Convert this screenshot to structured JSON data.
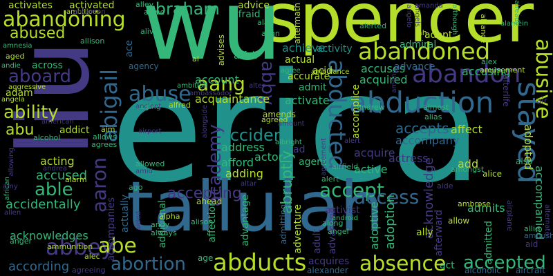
{
  "palette": {
    "background": "#000000",
    "lime": "#b5de2b",
    "green": "#35b779",
    "teal": "#21918c",
    "blue": "#31688e",
    "indigo": "#443a83",
    "purple": "#440154"
  },
  "words": [
    {
      "text": "erica",
      "color": "#21918c"
    },
    {
      "text": "spencer",
      "color": "#b5de2b"
    },
    {
      "text": "wu",
      "color": "#35b779"
    },
    {
      "text": "liu",
      "color": "#443a83"
    },
    {
      "text": "tallulah",
      "color": "#31688e"
    },
    {
      "text": "abduction",
      "color": "#31688e"
    },
    {
      "text": "abandoned",
      "color": "#b5de2b"
    },
    {
      "text": "abandoning",
      "color": "#b5de2b"
    },
    {
      "text": "abandon",
      "color": "#443a83"
    },
    {
      "text": "abducted",
      "color": "#31688e"
    },
    {
      "text": "stayed",
      "color": "#31688e"
    },
    {
      "text": "abusive",
      "color": "#b5de2b"
    },
    {
      "text": "abraham",
      "color": "#35b779"
    },
    {
      "text": "abused",
      "color": "#b5de2b"
    },
    {
      "text": "aboard",
      "color": "#443a83"
    },
    {
      "text": "ability",
      "color": "#b5de2b"
    },
    {
      "text": "abigail",
      "color": "#31688e"
    },
    {
      "text": "aang",
      "color": "#b5de2b"
    },
    {
      "text": "abby",
      "color": "#443a83"
    },
    {
      "text": "abuse",
      "color": "#31688e"
    },
    {
      "text": "abu",
      "color": "#b5de2b"
    },
    {
      "text": "able",
      "color": "#35b779"
    },
    {
      "text": "aaron",
      "color": "#443a83"
    },
    {
      "text": "academy",
      "color": "#443a83"
    },
    {
      "text": "abruptly",
      "color": "#35b779"
    },
    {
      "text": "accident",
      "color": "#21918c"
    },
    {
      "text": "accept",
      "color": "#35b779"
    },
    {
      "text": "access",
      "color": "#31688e"
    },
    {
      "text": "accepts",
      "color": "#31688e"
    },
    {
      "text": "abbey",
      "color": "#443a83"
    },
    {
      "text": "abe",
      "color": "#b5de2b"
    },
    {
      "text": "abortion",
      "color": "#31688e"
    },
    {
      "text": "abducts",
      "color": "#b5de2b"
    },
    {
      "text": "absence",
      "color": "#b5de2b"
    },
    {
      "text": "accepted",
      "color": "#35b779"
    },
    {
      "text": "accepting",
      "color": "#443a83"
    },
    {
      "text": "accused",
      "color": "#35b779"
    },
    {
      "text": "accidentally",
      "color": "#35b779"
    },
    {
      "text": "acknowledges",
      "color": "#35b779"
    },
    {
      "text": "according",
      "color": "#31688e"
    },
    {
      "text": "accusing",
      "color": "#35b779"
    },
    {
      "text": "accuses",
      "color": "#35b779"
    },
    {
      "text": "achieve",
      "color": "#21918c"
    },
    {
      "text": "account",
      "color": "#35b779"
    },
    {
      "text": "acquaintance",
      "color": "#b5de2b"
    },
    {
      "text": "activate",
      "color": "#35b779"
    },
    {
      "text": "acquired",
      "color": "#35b779"
    },
    {
      "text": "accompany",
      "color": "#31688e"
    },
    {
      "text": "accomplice",
      "color": "#b5de2b"
    },
    {
      "text": "address",
      "color": "#35b779"
    },
    {
      "text": "acquire",
      "color": "#443a83"
    },
    {
      "text": "afford",
      "color": "#35b779"
    },
    {
      "text": "actor",
      "color": "#35b779"
    },
    {
      "text": "active",
      "color": "#35b779"
    },
    {
      "text": "actress",
      "color": "#443a83"
    },
    {
      "text": "affect",
      "color": "#b5de2b"
    },
    {
      "text": "acting",
      "color": "#b5de2b"
    },
    {
      "text": "add",
      "color": "#b5de2b"
    },
    {
      "text": "adding",
      "color": "#b5de2b"
    },
    {
      "text": "admits",
      "color": "#35b779"
    },
    {
      "text": "adoption",
      "color": "#35b779"
    },
    {
      "text": "adoptive",
      "color": "#35b779"
    },
    {
      "text": "accompanied",
      "color": "#35b779"
    },
    {
      "text": "adopted",
      "color": "#b5de2b"
    },
    {
      "text": "acknowledge",
      "color": "#443a83"
    },
    {
      "text": "act",
      "color": "#35b779"
    },
    {
      "text": "acquires",
      "color": "#443a83"
    },
    {
      "text": "activist",
      "color": "#443a83"
    },
    {
      "text": "advantage",
      "color": "#35b779"
    },
    {
      "text": "accompanies",
      "color": "#443a83"
    },
    {
      "text": "addict",
      "color": "#b5de2b"
    },
    {
      "text": "activates",
      "color": "#b5de2b"
    },
    {
      "text": "activated",
      "color": "#b5de2b"
    },
    {
      "text": "accurate",
      "color": "#b5de2b"
    },
    {
      "text": "across",
      "color": "#35b779"
    },
    {
      "text": "actual",
      "color": "#b5de2b"
    },
    {
      "text": "acid",
      "color": "#b5de2b"
    },
    {
      "text": "admiral",
      "color": "#35b779"
    },
    {
      "text": "advance",
      "color": "#31688e"
    },
    {
      "text": "activity",
      "color": "#21918c"
    },
    {
      "text": "adopt",
      "color": "#b5de2b"
    },
    {
      "text": "advice",
      "color": "#b5de2b"
    },
    {
      "text": "afraid",
      "color": "#35b779"
    },
    {
      "text": "aftermath",
      "color": "#b5de2b"
    },
    {
      "text": "admit",
      "color": "#35b779"
    },
    {
      "text": "adult",
      "color": "#443a83"
    },
    {
      "text": "admitted",
      "color": "#35b779"
    },
    {
      "text": "advanced",
      "color": "#443a83"
    },
    {
      "text": "adventure",
      "color": "#b5de2b"
    },
    {
      "text": "actually",
      "color": "#31688e"
    },
    {
      "text": "additional",
      "color": "#35b779"
    },
    {
      "text": "afterward",
      "color": "#443a83"
    },
    {
      "text": "agency",
      "color": "#31688e"
    },
    {
      "text": "adam",
      "color": "#b5de2b"
    },
    {
      "text": "ace",
      "color": "#31688e"
    },
    {
      "text": "advises",
      "color": "#b5de2b"
    },
    {
      "text": "affair",
      "color": "#35b779"
    },
    {
      "text": "ad",
      "color": "#443a83"
    },
    {
      "text": "agent",
      "color": "#35b779"
    },
    {
      "text": "affection",
      "color": "#35b779"
    },
    {
      "text": "admitting",
      "color": "#31688e"
    },
    {
      "text": "afterlife",
      "color": "#443a83"
    },
    {
      "text": "ahead",
      "color": "#b5de2b"
    },
    {
      "text": "ally",
      "color": "#b5de2b"
    },
    {
      "text": "age",
      "color": "#35b779"
    },
    {
      "text": "alexander",
      "color": "#31688e"
    },
    {
      "text": "alcoholic",
      "color": "#31688e"
    },
    {
      "text": "aircraft",
      "color": "#31688e"
    },
    {
      "text": "ambush",
      "color": "#31688e"
    },
    {
      "text": "allow",
      "color": "#b5de2b"
    },
    {
      "text": "alice",
      "color": "#b5de2b"
    },
    {
      "text": "also",
      "color": "#35b779"
    },
    {
      "text": "aid",
      "color": "#443a83"
    },
    {
      "text": "aim",
      "color": "#b5de2b"
    },
    {
      "text": "air",
      "color": "#443a83"
    },
    {
      "text": "amends",
      "color": "#b5de2b"
    },
    {
      "text": "ah",
      "color": "#b5de2b"
    },
    {
      "text": "al",
      "color": "#b5de2b"
    },
    {
      "text": "agreed",
      "color": "#b5de2b"
    },
    {
      "text": "aging",
      "color": "#35b779"
    },
    {
      "text": "alfred",
      "color": "#b5de2b"
    },
    {
      "text": "aggressive",
      "color": "#b5de2b"
    },
    {
      "text": "aged",
      "color": "#b5de2b"
    },
    {
      "text": "alone",
      "color": "#35b779"
    },
    {
      "text": "alley",
      "color": "#35b779"
    },
    {
      "text": "ambitious",
      "color": "#b5de2b"
    },
    {
      "text": "anderson",
      "color": "#443a83"
    },
    {
      "text": "alan",
      "color": "#35b779"
    },
    {
      "text": "alarm",
      "color": "#b5de2b"
    },
    {
      "text": "allowed",
      "color": "#35b779"
    },
    {
      "text": "allows",
      "color": "#35b779"
    },
    {
      "text": "agrees",
      "color": "#35b779"
    },
    {
      "text": "alcohol",
      "color": "#35b779"
    },
    {
      "text": "ago",
      "color": "#35b779"
    },
    {
      "text": "alert",
      "color": "#35b779"
    },
    {
      "text": "alerted",
      "color": "#35b779"
    },
    {
      "text": "align",
      "color": "#35b779"
    },
    {
      "text": "alive",
      "color": "#35b779"
    },
    {
      "text": "allison",
      "color": "#35b779"
    },
    {
      "text": "along",
      "color": "#35b779"
    },
    {
      "text": "alpha",
      "color": "#b5de2b"
    },
    {
      "text": "alison",
      "color": "#35b779"
    },
    {
      "text": "andy",
      "color": "#35b779"
    },
    {
      "text": "always",
      "color": "#35b779"
    },
    {
      "text": "angel",
      "color": "#35b779"
    },
    {
      "text": "allie",
      "color": "#35b779"
    },
    {
      "text": "alliance",
      "color": "#b5de2b"
    },
    {
      "text": "alex",
      "color": "#35b779"
    },
    {
      "text": "amusement",
      "color": "#b5de2b"
    },
    {
      "text": "almost",
      "color": "#35b779"
    },
    {
      "text": "alias",
      "color": "#35b779"
    },
    {
      "text": "andrew",
      "color": "#35b779"
    },
    {
      "text": "airfield",
      "color": "#35b779"
    },
    {
      "text": "amongst",
      "color": "#35b779"
    },
    {
      "text": "airplane",
      "color": "#443a83"
    },
    {
      "text": "aide",
      "color": "#443a83"
    },
    {
      "text": "ambrose",
      "color": "#b5de2b"
    },
    {
      "text": "ammunition",
      "color": "#b5de2b"
    },
    {
      "text": "anger",
      "color": "#35b779"
    },
    {
      "text": "alec",
      "color": "#b5de2b"
    },
    {
      "text": "agreeing",
      "color": "#443a83"
    },
    {
      "text": "ambulance",
      "color": "#b5de2b"
    },
    {
      "text": "ambassador",
      "color": "#443a83"
    },
    {
      "text": "ambition",
      "color": "#35b779"
    },
    {
      "text": "agree",
      "color": "#35b779"
    },
    {
      "text": "amount",
      "color": "#443a83"
    },
    {
      "text": "albright",
      "color": "#35b779"
    },
    {
      "text": "alongside",
      "color": "#443a83"
    },
    {
      "text": "airport",
      "color": "#443a83"
    },
    {
      "text": "american",
      "color": "#443a83"
    },
    {
      "text": "african",
      "color": "#35b779"
    },
    {
      "text": "allowing",
      "color": "#443a83"
    },
    {
      "text": "andrea",
      "color": "#443a83"
    },
    {
      "text": "amy",
      "color": "#443a83"
    },
    {
      "text": "amid",
      "color": "#443a83"
    },
    {
      "text": "allen",
      "color": "#443a83"
    },
    {
      "text": "amnesia",
      "color": "#35b779"
    },
    {
      "text": "andie",
      "color": "#35b779"
    },
    {
      "text": "angela",
      "color": "#b5de2b"
    },
    {
      "text": "among",
      "color": "#443a83"
    },
    {
      "text": "amanda",
      "color": "#443a83"
    },
    {
      "text": "alter",
      "color": "#443a83"
    },
    {
      "text": "ancient",
      "color": "#443a83"
    },
    {
      "text": "aided",
      "color": "#443a83"
    },
    {
      "text": "although",
      "color": "#35b779"
    },
    {
      "text": "alamein",
      "color": "#35b779"
    },
    {
      "text": "already",
      "color": "#35b779"
    },
    {
      "text": "altar",
      "color": "#443a83"
    },
    {
      "text": "android",
      "color": "#35b779"
    },
    {
      "text": "angels",
      "color": "#443a83"
    },
    {
      "text": "angelo",
      "color": "#443a83"
    },
    {
      "text": "alternate",
      "color": "#443a83"
    },
    {
      "text": "agreement",
      "color": "#443a83"
    },
    {
      "text": "alert",
      "color": "#443a83"
    }
  ]
}
